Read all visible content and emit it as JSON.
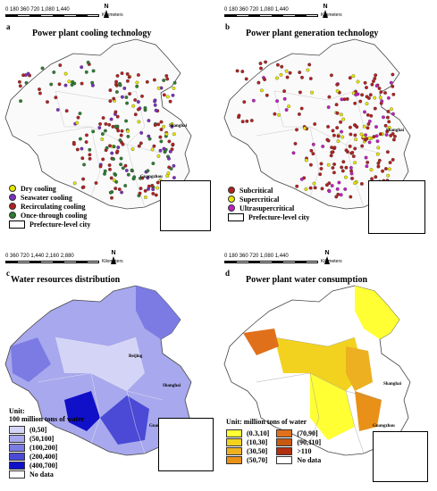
{
  "scale": {
    "ab_ticks": "0  180 360      720      1,080    1,440",
    "c_ticks": "0  360 720      1,440    2,160    2,880",
    "d_ticks": "0  180 360      720      1,080    1,440",
    "unit": "Kilometers",
    "north": "N"
  },
  "cities": {
    "beijing": "Beijing",
    "shanghai": "Shanghai",
    "guangzhou": "Guangzhou"
  },
  "panels": {
    "a": {
      "letter": "a",
      "title": "Power plant cooling technology",
      "legend": [
        {
          "label": "Dry cooling",
          "color": "#e6e600"
        },
        {
          "label": "Seawater cooling",
          "color": "#7b2fbf"
        },
        {
          "label": "Recirculating cooling",
          "color": "#b22222"
        },
        {
          "label": "Once-through cooling",
          "color": "#2e7d32"
        }
      ],
      "city_label": "Prefecture-level city"
    },
    "b": {
      "letter": "b",
      "title": "Power plant generation technology",
      "legend": [
        {
          "label": "Subcritical",
          "color": "#b22222"
        },
        {
          "label": "Supercritical",
          "color": "#e6e600"
        },
        {
          "label": "Ultrasupercritical",
          "color": "#c020c0"
        }
      ],
      "city_label": "Prefecture-level city"
    },
    "c": {
      "letter": "c",
      "title": "Water resources distribution",
      "unit_line1": "Unit:",
      "unit_line2": "100 million tons of water",
      "legend": [
        {
          "label": "(0,50]",
          "color": "#d4d4f7"
        },
        {
          "label": "(50,100]",
          "color": "#a8a8ee"
        },
        {
          "label": "(100,200]",
          "color": "#7b7be3"
        },
        {
          "label": "(200,400]",
          "color": "#4a4ad6"
        },
        {
          "label": "(400,700]",
          "color": "#1010c8"
        },
        {
          "label": "No data",
          "color": "#ffffff"
        }
      ]
    },
    "d": {
      "letter": "d",
      "title": "Power plant water consumption",
      "unit": "Unit: million tons of water",
      "legend": [
        {
          "label": "(0.3,10]",
          "color": "#ffff33"
        },
        {
          "label": "(70,90]",
          "color": "#e0701a"
        },
        {
          "label": "(10,30]",
          "color": "#f2d21e"
        },
        {
          "label": "(90,110]",
          "color": "#c85a10"
        },
        {
          "label": "(30,50]",
          "color": "#ecb020"
        },
        {
          "label": ">110",
          "color": "#b03010"
        },
        {
          "label": "(50,70]",
          "color": "#e89018"
        },
        {
          "label": "No data",
          "color": "#ffffff"
        }
      ]
    }
  }
}
